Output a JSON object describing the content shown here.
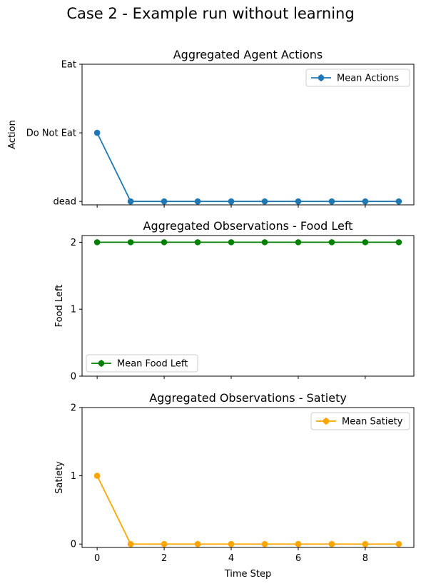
{
  "figure": {
    "suptitle": "Case 2 - Example run without learning"
  },
  "chart_data": [
    {
      "type": "line",
      "title": "Aggregated Agent Actions",
      "xlabel": "",
      "ylabel": "Action",
      "x": [
        0,
        1,
        2,
        3,
        4,
        5,
        6,
        7,
        8,
        9
      ],
      "xlim": [
        -0.45,
        9.45
      ],
      "ylim": [
        -0.05,
        2.0
      ],
      "yticks": [
        0,
        1,
        2
      ],
      "ytick_labels": [
        "dead",
        "Do Not Eat",
        "Eat"
      ],
      "xticks": [
        0,
        2,
        4,
        6,
        8
      ],
      "show_xtick_labels": false,
      "legend_position": "upper right",
      "series": [
        {
          "name": "Mean Actions",
          "color": "#1f77b4",
          "marker": "circle",
          "values": [
            1,
            0,
            0,
            0,
            0,
            0,
            0,
            0,
            0,
            0
          ]
        }
      ]
    },
    {
      "type": "line",
      "title": "Aggregated Observations - Food Left",
      "xlabel": "",
      "ylabel": "Food Left",
      "x": [
        0,
        1,
        2,
        3,
        4,
        5,
        6,
        7,
        8,
        9
      ],
      "xlim": [
        -0.45,
        9.45
      ],
      "ylim": [
        0,
        2.1
      ],
      "yticks": [
        0,
        1,
        2
      ],
      "ytick_labels": [
        "0",
        "1",
        "2"
      ],
      "xticks": [
        0,
        2,
        4,
        6,
        8
      ],
      "show_xtick_labels": false,
      "legend_position": "lower left",
      "series": [
        {
          "name": "Mean Food Left",
          "color": "#008000",
          "marker": "circle",
          "values": [
            2,
            2,
            2,
            2,
            2,
            2,
            2,
            2,
            2,
            2
          ]
        }
      ]
    },
    {
      "type": "line",
      "title": "Aggregated Observations - Satiety",
      "xlabel": "Time Step",
      "ylabel": "Satiety",
      "x": [
        0,
        1,
        2,
        3,
        4,
        5,
        6,
        7,
        8,
        9
      ],
      "xlim": [
        -0.45,
        9.45
      ],
      "ylim": [
        -0.05,
        2.0
      ],
      "yticks": [
        0,
        1,
        2
      ],
      "ytick_labels": [
        "0",
        "1",
        "2"
      ],
      "xticks": [
        0,
        2,
        4,
        6,
        8
      ],
      "xtick_labels": [
        "0",
        "2",
        "4",
        "6",
        "8"
      ],
      "show_xtick_labels": true,
      "legend_position": "upper right",
      "series": [
        {
          "name": "Mean Satiety",
          "color": "#ffa500",
          "marker": "circle",
          "values": [
            1,
            0,
            0,
            0,
            0,
            0,
            0,
            0,
            0,
            0
          ]
        }
      ]
    }
  ]
}
